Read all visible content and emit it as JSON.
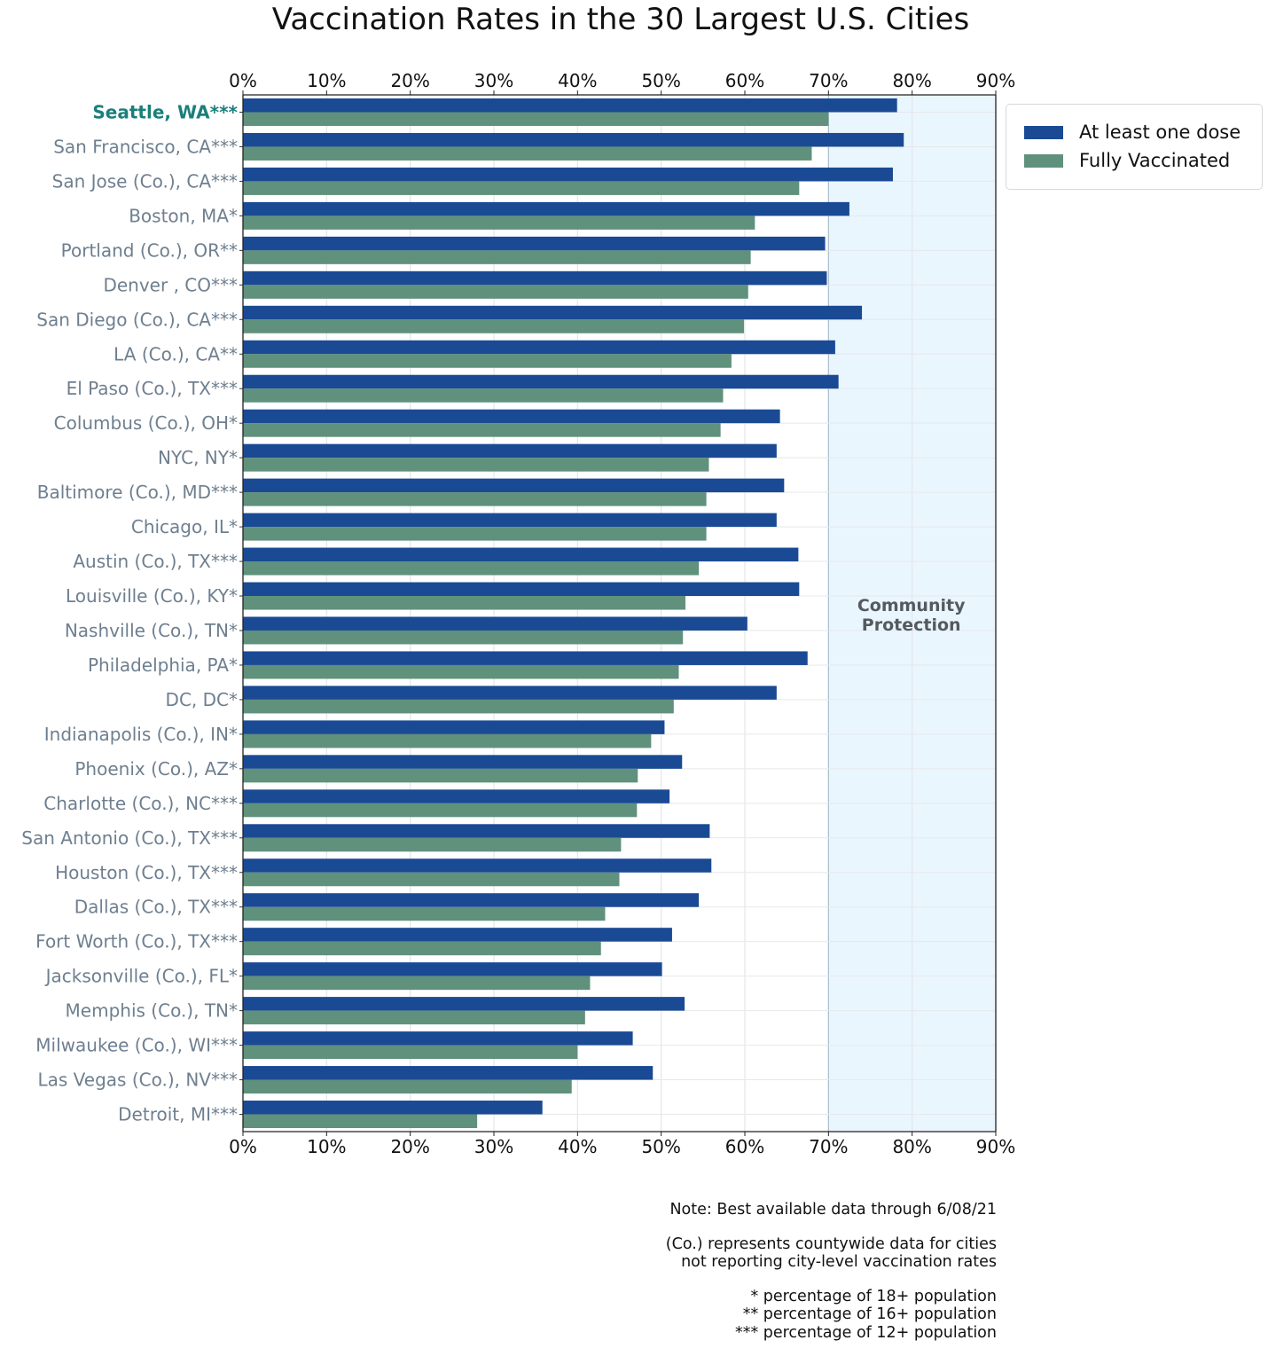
{
  "chart_data": {
    "type": "bar",
    "orientation": "horizontal",
    "title": "Vaccination Rates in the 30 Largest U.S. Cities",
    "xlabel": "",
    "ylabel": "",
    "xlim": [
      0,
      90
    ],
    "x_ticks": [
      "0%",
      "10%",
      "20%",
      "30%",
      "40%",
      "50%",
      "60%",
      "70%",
      "80%",
      "90%"
    ],
    "x_tick_values": [
      0,
      10,
      20,
      30,
      40,
      50,
      60,
      70,
      80,
      90
    ],
    "grid": true,
    "legend_position": "top-right (outside plot)",
    "highlighted_category": "Seattle, WA***",
    "categories": [
      "Seattle, WA***",
      "San Francisco, CA***",
      "San Jose (Co.), CA***",
      "Boston, MA*",
      "Portland (Co.), OR**",
      "Denver , CO***",
      "San Diego (Co.), CA***",
      "LA (Co.), CA**",
      "El Paso (Co.), TX***",
      "Columbus (Co.), OH*",
      "NYC, NY*",
      "Baltimore (Co.), MD***",
      "Chicago, IL*",
      "Austin (Co.), TX***",
      "Louisville (Co.), KY*",
      "Nashville (Co.), TN*",
      "Philadelphia, PA*",
      "DC, DC*",
      "Indianapolis (Co.), IN*",
      "Phoenix (Co.), AZ*",
      "Charlotte (Co.), NC***",
      "San Antonio (Co.), TX***",
      "Houston (Co.), TX***",
      "Dallas (Co.), TX***",
      "Fort Worth (Co.), TX***",
      "Jacksonville (Co.), FL*",
      "Memphis (Co.), TN*",
      "Milwaukee (Co.), WI***",
      "Las Vegas (Co.), NV***",
      "Detroit, MI***"
    ],
    "series": [
      {
        "name": "At least one dose",
        "color": "#1a4a94",
        "values": [
          78.2,
          79.0,
          77.7,
          72.5,
          69.6,
          69.8,
          74.0,
          70.8,
          71.2,
          64.2,
          63.8,
          64.7,
          63.8,
          66.4,
          66.5,
          60.3,
          67.5,
          63.8,
          50.4,
          52.5,
          51.0,
          55.8,
          56.0,
          54.5,
          51.3,
          50.1,
          52.8,
          46.6,
          49.0,
          35.8
        ]
      },
      {
        "name": "Fully Vaccinated",
        "color": "#5f917c",
        "values": [
          70.0,
          68.0,
          66.5,
          61.2,
          60.7,
          60.4,
          59.9,
          58.4,
          57.4,
          57.1,
          55.7,
          55.4,
          55.4,
          54.5,
          52.9,
          52.6,
          52.1,
          51.5,
          48.8,
          47.2,
          47.1,
          45.2,
          45.0,
          43.3,
          42.8,
          41.5,
          40.9,
          40.0,
          39.3,
          28.0
        ]
      }
    ],
    "shaded_region": {
      "from": 70,
      "to": 90,
      "label_line1": "Community",
      "label_line2": "Protection",
      "color": "#eaf6fd"
    },
    "annotations": {
      "note": "Note: Best available data through 6/08/21",
      "county_line1": "(Co.) represents countywide data for cities",
      "county_line2": "not reporting city-level vaccination rates",
      "footnote1": "* percentage of 18+ population",
      "footnote2": "** percentage of 16+ population",
      "footnote3": "*** percentage of 12+ population"
    }
  }
}
